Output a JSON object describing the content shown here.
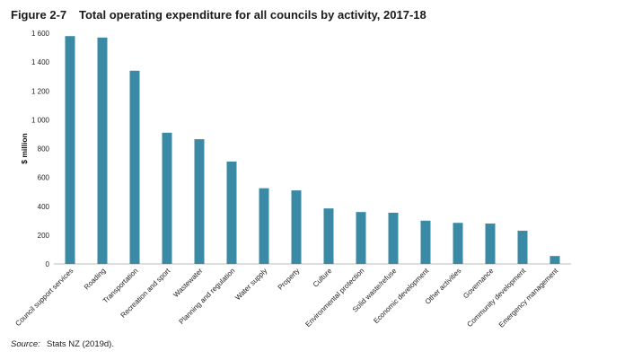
{
  "figure": {
    "number": "Figure 2-7",
    "title": "Total operating expenditure for all councils by activity, 2017-18"
  },
  "source": {
    "label": "Source:",
    "text": "Stats NZ (2019d)."
  },
  "chart_data": {
    "type": "bar",
    "title": "Total operating expenditure for all councils by activity, 2017-18",
    "xlabel": "",
    "ylabel": "$ million",
    "ylim": [
      0,
      1600
    ],
    "yticks": [
      0,
      200,
      400,
      600,
      800,
      1000,
      1200,
      1400,
      1600
    ],
    "ytick_labels": [
      "0",
      "200",
      "400",
      "600",
      "800",
      "1 000",
      "1 200",
      "1 400",
      "1 600"
    ],
    "grid": false,
    "bar_color": "#3a8aa6",
    "categories": [
      "Council support services",
      "Roading",
      "Transportation",
      "Recreation and sport",
      "Wastewater",
      "Planning and regulation",
      "Water supply",
      "Property",
      "Culture",
      "Environmental protection",
      "Solid waste/refuse",
      "Economic development",
      "Other activities",
      "Governance",
      "Community development",
      "Emergency management"
    ],
    "values": [
      1580,
      1570,
      1340,
      910,
      865,
      710,
      525,
      510,
      385,
      360,
      355,
      300,
      285,
      280,
      230,
      55
    ]
  }
}
